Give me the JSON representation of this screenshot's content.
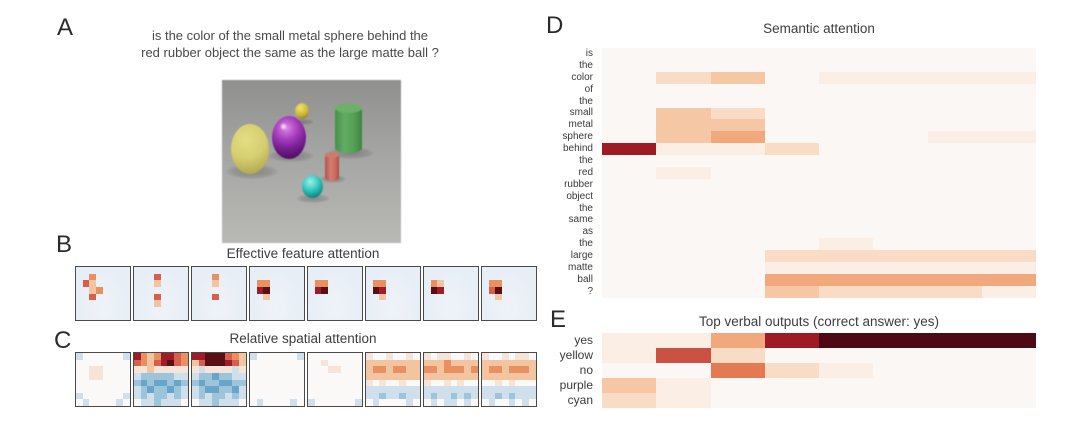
{
  "panels": {
    "a": {
      "label": "A",
      "question_line1": "is the color of the small metal sphere behind the",
      "question_line2": "red rubber object the same as the large matte ball ?",
      "scene_objects": [
        "large yellow rubber sphere",
        "large purple metal sphere",
        "small yellow metal sphere",
        "large green cylinder",
        "small red rubber cylinder",
        "small cyan metal sphere"
      ]
    },
    "b": {
      "label": "B",
      "title": "Effective feature attention",
      "tiles": [
        [
          "........",
          "..O.....",
          ".Ro.....",
          "..oO....",
          "..R.....",
          "........",
          "........",
          "........"
        ],
        [
          "........",
          "...R....",
          "...o....",
          "........",
          "...R....",
          "...o....",
          "........",
          "........"
        ],
        [
          "........",
          "...O....",
          "...o....",
          "........",
          "...R....",
          "........",
          "........",
          "........"
        ],
        [
          "........",
          "........",
          ".OO.....",
          ".DM.....",
          "..o.....",
          "........",
          "........",
          "........"
        ],
        [
          "........",
          "........",
          ".OO.....",
          ".DM.....",
          "........",
          "........",
          "........",
          "........"
        ],
        [
          "........",
          "........",
          ".OO.....",
          ".MD.....",
          "..o.....",
          "........",
          "........",
          "........"
        ],
        [
          "........",
          "........",
          ".Oo.....",
          ".MD.....",
          "........",
          "........",
          "........",
          "........"
        ],
        [
          "........",
          "........",
          ".OO.....",
          ".RM.....",
          "..o.....",
          "........",
          "........",
          "........"
        ]
      ]
    },
    "c": {
      "label": "C",
      "title": "Relative spatial attention",
      "tiles": [
        [
          "b......b",
          "........",
          "..pp....",
          "..pp....",
          "........",
          "........",
          "b......b",
          ".b....b."
        ],
        [
          "DOoODDRO",
          "ROoRDMRO",
          "ppoppppp",
          "bBBBBBbb",
          "BNBNNBNB",
          "bBNBBNBb",
          "bBbBBbBb",
          ".bbBbbb."
        ],
        [
          "DDMMMROo",
          "oRMMMDRo",
          "pbppppbp",
          "bBBNBBbb",
          "BNBBNNBB",
          "bBNNBBNb",
          "bBbBBbBb",
          ".bbBbbb."
        ],
        [
          "b......b",
          "........",
          "........",
          "........",
          "........",
          "........",
          "........",
          ".b....b."
        ],
        [
          "........",
          "..p.....",
          "...pp...",
          "........",
          "........",
          "........",
          "........",
          "b......b"
        ],
        [
          "p..p..p.",
          "oooooooo",
          "oOOoOOoo",
          "oooooooo",
          "p.p..p..",
          "bbbbbbbb",
          "bbBbbBbb",
          ".b....b."
        ],
        [
          "p.pp..p.",
          "oooOoooo",
          "OOoOOOoO",
          "oooooooo",
          "p..p.p..",
          "bbbbbbbb",
          "bBbbBbBb",
          ".b.bb.b."
        ],
        [
          "p..p.pp.",
          "oooooooo",
          "oOOoOOOo",
          "oooooooo",
          "..p.p...",
          "bbbbbbbb",
          "bbBbBbbb",
          ".b..b.b."
        ]
      ]
    },
    "d": {
      "label": "D",
      "title": "Semantic attention",
      "words": [
        "is",
        "the",
        "color",
        "of",
        "the",
        "small",
        "metal",
        "sphere",
        "behind",
        "the",
        "red",
        "rubber",
        "object",
        "the",
        "same",
        "as",
        "the",
        "large",
        "matte",
        "ball",
        "?"
      ],
      "matrix": [
        [
          0,
          0,
          0,
          0,
          0,
          0,
          0,
          0
        ],
        [
          0,
          0,
          0,
          0,
          0,
          0,
          0,
          0
        ],
        [
          0,
          2,
          3,
          0,
          1,
          1,
          1,
          1
        ],
        [
          0,
          0,
          0,
          0,
          0,
          0,
          0,
          0
        ],
        [
          0,
          0,
          0,
          0,
          0,
          0,
          0,
          0
        ],
        [
          0,
          3,
          2,
          0,
          0,
          0,
          0,
          0
        ],
        [
          0,
          3,
          3,
          0,
          0,
          0,
          0,
          0
        ],
        [
          0,
          3,
          4,
          0,
          0,
          0,
          1,
          1
        ],
        [
          7,
          1,
          1,
          2,
          0,
          0,
          0,
          0
        ],
        [
          0,
          0,
          0,
          0,
          0,
          0,
          0,
          0
        ],
        [
          0,
          1,
          0,
          0,
          0,
          0,
          0,
          0
        ],
        [
          0,
          0,
          0,
          0,
          0,
          0,
          0,
          0
        ],
        [
          0,
          0,
          0,
          0,
          0,
          0,
          0,
          0
        ],
        [
          0,
          0,
          0,
          0,
          0,
          0,
          0,
          0
        ],
        [
          0,
          0,
          0,
          0,
          0,
          0,
          0,
          0
        ],
        [
          0,
          0,
          0,
          0,
          0,
          0,
          0,
          0
        ],
        [
          0,
          0,
          0,
          0,
          1,
          0,
          0,
          0
        ],
        [
          0,
          0,
          0,
          2,
          2,
          2,
          2,
          2
        ],
        [
          0,
          0,
          0,
          1,
          1,
          1,
          1,
          1
        ],
        [
          0,
          0,
          0,
          4,
          4,
          4,
          4,
          4
        ],
        [
          0,
          0,
          0,
          3,
          2,
          2,
          2,
          1
        ]
      ]
    },
    "e": {
      "label": "E",
      "title": "Top verbal outputs (correct answer: yes)",
      "words": [
        "yes",
        "yellow",
        "no",
        "purple",
        "cyan"
      ],
      "matrix": [
        [
          1,
          1,
          4,
          7,
          9,
          9,
          9,
          9
        ],
        [
          1,
          6,
          2,
          0,
          0,
          0,
          0,
          0
        ],
        [
          0,
          0,
          5,
          2,
          1,
          0,
          0,
          0
        ],
        [
          3,
          1,
          0,
          0,
          0,
          0,
          0,
          0
        ],
        [
          2,
          1,
          0,
          0,
          0,
          0,
          0,
          0
        ]
      ]
    }
  },
  "tile_palette": {
    "o": "#f2c4a0",
    "O": "#e89060",
    "R": "#d6604d",
    "D": "#a01c28",
    "M": "#5a0e16",
    "p": "#f7e4d8",
    "b": "#cfe0ec",
    "B": "#9cc5dc",
    "N": "#68a5c8",
    "w": "#fcfbfa"
  },
  "heat_palette": [
    "#faf7f5",
    "#fbeee5",
    "#f8dcc6",
    "#f5c7a4",
    "#f1a87c",
    "#e37a52",
    "#cc5145",
    "#9e1b26",
    "#741019",
    "#4d0a15"
  ],
  "colors": {
    "figure_background": "#ffffff",
    "tile_border": "#4a4a4a",
    "positive_attention_max": "#4d0a15",
    "negative_attention_blue": "#68a5c8"
  },
  "chart_data": [
    {
      "type": "heatmap",
      "title": "Semantic attention",
      "rows": [
        "is",
        "the",
        "color",
        "of",
        "the",
        "small",
        "metal",
        "sphere",
        "behind",
        "the",
        "red",
        "rubber",
        "object",
        "the",
        "same",
        "as",
        "the",
        "large",
        "matte",
        "ball",
        "?"
      ],
      "n_columns": 8,
      "values": [
        [
          0,
          0,
          0,
          0,
          0,
          0,
          0,
          0
        ],
        [
          0,
          0,
          0,
          0,
          0,
          0,
          0,
          0
        ],
        [
          0,
          2,
          3,
          0,
          1,
          1,
          1,
          1
        ],
        [
          0,
          0,
          0,
          0,
          0,
          0,
          0,
          0
        ],
        [
          0,
          0,
          0,
          0,
          0,
          0,
          0,
          0
        ],
        [
          0,
          3,
          2,
          0,
          0,
          0,
          0,
          0
        ],
        [
          0,
          3,
          3,
          0,
          0,
          0,
          0,
          0
        ],
        [
          0,
          3,
          4,
          0,
          0,
          0,
          1,
          1
        ],
        [
          7,
          1,
          1,
          2,
          0,
          0,
          0,
          0
        ],
        [
          0,
          0,
          0,
          0,
          0,
          0,
          0,
          0
        ],
        [
          0,
          1,
          0,
          0,
          0,
          0,
          0,
          0
        ],
        [
          0,
          0,
          0,
          0,
          0,
          0,
          0,
          0
        ],
        [
          0,
          0,
          0,
          0,
          0,
          0,
          0,
          0
        ],
        [
          0,
          0,
          0,
          0,
          0,
          0,
          0,
          0
        ],
        [
          0,
          0,
          0,
          0,
          0,
          0,
          0,
          0
        ],
        [
          0,
          0,
          0,
          0,
          0,
          0,
          0,
          0
        ],
        [
          0,
          0,
          0,
          0,
          1,
          0,
          0,
          0
        ],
        [
          0,
          0,
          0,
          2,
          2,
          2,
          2,
          2
        ],
        [
          0,
          0,
          0,
          1,
          1,
          1,
          1,
          1
        ],
        [
          0,
          0,
          0,
          4,
          4,
          4,
          4,
          4
        ],
        [
          0,
          0,
          0,
          3,
          2,
          2,
          2,
          1
        ]
      ],
      "value_scale": "relative attention intensity 0 (none) to 9 (max), white-to-dark-red colormap",
      "legend_position": "none",
      "grid": false
    },
    {
      "type": "heatmap",
      "title": "Top verbal outputs (correct answer: yes)",
      "rows": [
        "yes",
        "yellow",
        "no",
        "purple",
        "cyan"
      ],
      "n_columns": 8,
      "values": [
        [
          1,
          1,
          4,
          7,
          9,
          9,
          9,
          9
        ],
        [
          1,
          6,
          2,
          0,
          0,
          0,
          0,
          0
        ],
        [
          0,
          0,
          5,
          2,
          1,
          0,
          0,
          0
        ],
        [
          3,
          1,
          0,
          0,
          0,
          0,
          0,
          0
        ],
        [
          2,
          1,
          0,
          0,
          0,
          0,
          0,
          0
        ]
      ],
      "value_scale": "relative output probability 0 (none) to 9 (max), white-to-dark-red colormap",
      "legend_position": "none",
      "grid": false
    },
    {
      "type": "heatmap",
      "title": "Effective feature attention",
      "description": "8 reasoning-step tiles, each an 8x8 spatial attention map over the image; red spots mark attended locations; full grids encoded in panels.b.tiles"
    },
    {
      "type": "heatmap",
      "title": "Relative spatial attention",
      "description": "8 reasoning-step tiles, each an 8x8 signed map (red positive top band in steps 2-3 and 6-8, blue negative below); full grids encoded in panels.c.tiles"
    }
  ]
}
